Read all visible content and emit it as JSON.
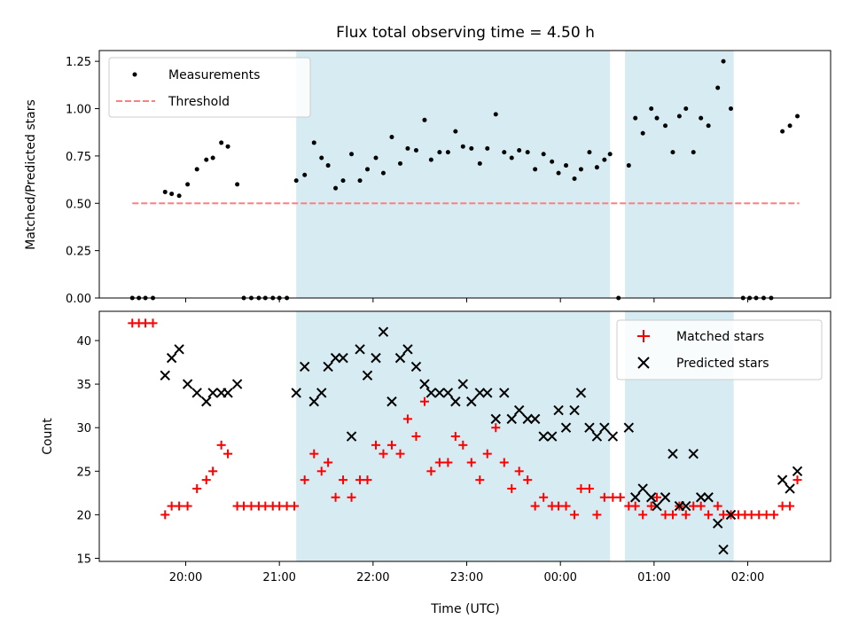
{
  "chart_data": [
    {
      "type": "scatter",
      "title": "Flux total observing time = 4.50 h",
      "xlabel": "",
      "ylabel": "Matched/Predicted stars",
      "ylim": [
        0,
        1.3
      ],
      "y_ticks": [
        "0.00",
        "0.25",
        "0.50",
        "0.75",
        "1.00",
        "1.25"
      ],
      "x_tick_hours": [
        20,
        21,
        22,
        23,
        24,
        25,
        26
      ],
      "legend": {
        "position": "top-left",
        "entries": [
          "Measurements",
          "Threshold"
        ]
      },
      "shaded_intervals_hours": [
        [
          21.18,
          24.53
        ],
        [
          24.69,
          25.85
        ]
      ],
      "threshold": {
        "name": "Threshold",
        "y": 0.5,
        "x_range_hours": [
          19.43,
          26.55
        ],
        "color": "#ff7f7f"
      },
      "series": [
        {
          "name": "Measurements",
          "color": "#000000",
          "points": [
            [
              19.43,
              0
            ],
            [
              19.5,
              0
            ],
            [
              19.57,
              0
            ],
            [
              19.65,
              0
            ],
            [
              19.78,
              0.56
            ],
            [
              19.85,
              0.55
            ],
            [
              19.93,
              0.54
            ],
            [
              20.02,
              0.6
            ],
            [
              20.12,
              0.68
            ],
            [
              20.22,
              0.73
            ],
            [
              20.29,
              0.74
            ],
            [
              20.38,
              0.82
            ],
            [
              20.45,
              0.8
            ],
            [
              20.55,
              0.6
            ],
            [
              20.62,
              0
            ],
            [
              20.7,
              0
            ],
            [
              20.78,
              0
            ],
            [
              20.85,
              0
            ],
            [
              20.93,
              0
            ],
            [
              21.0,
              0
            ],
            [
              21.08,
              0
            ],
            [
              21.18,
              0.62
            ],
            [
              21.27,
              0.65
            ],
            [
              21.37,
              0.82
            ],
            [
              21.45,
              0.74
            ],
            [
              21.52,
              0.7
            ],
            [
              21.6,
              0.58
            ],
            [
              21.68,
              0.62
            ],
            [
              21.77,
              0.76
            ],
            [
              21.86,
              0.62
            ],
            [
              21.94,
              0.68
            ],
            [
              22.03,
              0.74
            ],
            [
              22.11,
              0.66
            ],
            [
              22.2,
              0.85
            ],
            [
              22.29,
              0.71
            ],
            [
              22.37,
              0.79
            ],
            [
              22.46,
              0.78
            ],
            [
              22.55,
              0.94
            ],
            [
              22.62,
              0.73
            ],
            [
              22.71,
              0.77
            ],
            [
              22.8,
              0.77
            ],
            [
              22.88,
              0.88
            ],
            [
              22.96,
              0.8
            ],
            [
              23.05,
              0.79
            ],
            [
              23.14,
              0.71
            ],
            [
              23.22,
              0.79
            ],
            [
              23.31,
              0.97
            ],
            [
              23.4,
              0.77
            ],
            [
              23.48,
              0.74
            ],
            [
              23.56,
              0.78
            ],
            [
              23.65,
              0.77
            ],
            [
              23.73,
              0.68
            ],
            [
              23.82,
              0.76
            ],
            [
              23.91,
              0.72
            ],
            [
              23.98,
              0.66
            ],
            [
              24.06,
              0.7
            ],
            [
              24.15,
              0.63
            ],
            [
              24.22,
              0.68
            ],
            [
              24.31,
              0.77
            ],
            [
              24.39,
              0.69
            ],
            [
              24.47,
              0.73
            ],
            [
              24.53,
              0.76
            ],
            [
              24.62,
              0
            ],
            [
              24.73,
              0.7
            ],
            [
              24.8,
              0.95
            ],
            [
              24.88,
              0.87
            ],
            [
              24.97,
              1.0
            ],
            [
              25.03,
              0.95
            ],
            [
              25.12,
              0.91
            ],
            [
              25.2,
              0.77
            ],
            [
              25.27,
              0.96
            ],
            [
              25.34,
              1.0
            ],
            [
              25.42,
              0.77
            ],
            [
              25.5,
              0.95
            ],
            [
              25.58,
              0.91
            ],
            [
              25.68,
              1.11
            ],
            [
              25.74,
              1.25
            ],
            [
              25.82,
              1.0
            ],
            [
              25.95,
              0
            ],
            [
              26.02,
              0
            ],
            [
              26.09,
              0
            ],
            [
              26.17,
              0
            ],
            [
              26.25,
              0
            ],
            [
              26.37,
              0.88
            ],
            [
              26.45,
              0.91
            ],
            [
              26.53,
              0.96
            ]
          ]
        }
      ]
    },
    {
      "type": "scatter",
      "title": "",
      "xlabel": "Time (UTC)",
      "ylabel": "Count",
      "ylim": [
        14.6,
        43.5
      ],
      "y_ticks": [
        "15",
        "20",
        "25",
        "30",
        "35",
        "40"
      ],
      "x_tick_labels": [
        "20:00",
        "21:00",
        "22:00",
        "23:00",
        "00:00",
        "01:00",
        "02:00"
      ],
      "x_tick_hours": [
        20,
        21,
        22,
        23,
        24,
        25,
        26
      ],
      "legend": {
        "position": "top-right",
        "entries": [
          "Matched stars",
          "Predicted stars"
        ]
      },
      "shaded_intervals_hours": [
        [
          21.18,
          24.53
        ],
        [
          24.69,
          25.85
        ]
      ],
      "series": [
        {
          "name": "Matched stars",
          "marker": "plus",
          "color": "#ff0000",
          "points": [
            [
              19.43,
              42
            ],
            [
              19.5,
              42
            ],
            [
              19.57,
              42
            ],
            [
              19.65,
              42
            ],
            [
              19.78,
              20
            ],
            [
              19.85,
              21
            ],
            [
              19.93,
              21
            ],
            [
              20.02,
              21
            ],
            [
              20.12,
              23
            ],
            [
              20.22,
              24
            ],
            [
              20.29,
              25
            ],
            [
              20.38,
              28
            ],
            [
              20.45,
              27
            ],
            [
              20.55,
              21
            ],
            [
              20.62,
              21
            ],
            [
              20.7,
              21
            ],
            [
              20.78,
              21
            ],
            [
              20.85,
              21
            ],
            [
              20.93,
              21
            ],
            [
              21.0,
              21
            ],
            [
              21.08,
              21
            ],
            [
              21.16,
              21
            ],
            [
              21.27,
              24
            ],
            [
              21.37,
              27
            ],
            [
              21.45,
              25
            ],
            [
              21.52,
              26
            ],
            [
              21.6,
              22
            ],
            [
              21.68,
              24
            ],
            [
              21.77,
              22
            ],
            [
              21.86,
              24
            ],
            [
              21.94,
              24
            ],
            [
              22.03,
              28
            ],
            [
              22.11,
              27
            ],
            [
              22.2,
              28
            ],
            [
              22.29,
              27
            ],
            [
              22.37,
              31
            ],
            [
              22.46,
              29
            ],
            [
              22.55,
              33
            ],
            [
              22.62,
              25
            ],
            [
              22.71,
              26
            ],
            [
              22.8,
              26
            ],
            [
              22.88,
              29
            ],
            [
              22.96,
              28
            ],
            [
              23.05,
              26
            ],
            [
              23.14,
              24
            ],
            [
              23.22,
              27
            ],
            [
              23.31,
              30
            ],
            [
              23.4,
              26
            ],
            [
              23.48,
              23
            ],
            [
              23.56,
              25
            ],
            [
              23.65,
              24
            ],
            [
              23.73,
              21
            ],
            [
              23.82,
              22
            ],
            [
              23.91,
              21
            ],
            [
              23.98,
              21
            ],
            [
              24.06,
              21
            ],
            [
              24.15,
              20
            ],
            [
              24.22,
              23
            ],
            [
              24.31,
              23
            ],
            [
              24.39,
              20
            ],
            [
              24.47,
              22
            ],
            [
              24.56,
              22
            ],
            [
              24.64,
              22
            ],
            [
              24.73,
              21
            ],
            [
              24.8,
              21
            ],
            [
              24.88,
              20
            ],
            [
              24.97,
              21
            ],
            [
              25.03,
              22
            ],
            [
              25.12,
              20
            ],
            [
              25.2,
              20
            ],
            [
              25.27,
              21
            ],
            [
              25.34,
              20
            ],
            [
              25.42,
              21
            ],
            [
              25.5,
              21
            ],
            [
              25.58,
              20
            ],
            [
              25.68,
              21
            ],
            [
              25.74,
              20
            ],
            [
              25.82,
              20
            ],
            [
              25.9,
              20
            ],
            [
              25.97,
              20
            ],
            [
              26.04,
              20
            ],
            [
              26.12,
              20
            ],
            [
              26.2,
              20
            ],
            [
              26.28,
              20
            ],
            [
              26.37,
              21
            ],
            [
              26.45,
              21
            ],
            [
              26.53,
              24
            ]
          ]
        },
        {
          "name": "Predicted stars",
          "marker": "x",
          "color": "#000000",
          "points": [
            [
              19.78,
              36
            ],
            [
              19.85,
              38
            ],
            [
              19.93,
              39
            ],
            [
              20.02,
              35
            ],
            [
              20.12,
              34
            ],
            [
              20.22,
              33
            ],
            [
              20.29,
              34
            ],
            [
              20.38,
              34
            ],
            [
              20.45,
              34
            ],
            [
              20.55,
              35
            ],
            [
              21.18,
              34
            ],
            [
              21.27,
              37
            ],
            [
              21.37,
              33
            ],
            [
              21.45,
              34
            ],
            [
              21.52,
              37
            ],
            [
              21.6,
              38
            ],
            [
              21.68,
              38
            ],
            [
              21.77,
              29
            ],
            [
              21.86,
              39
            ],
            [
              21.94,
              36
            ],
            [
              22.03,
              38
            ],
            [
              22.11,
              41
            ],
            [
              22.2,
              33
            ],
            [
              22.29,
              38
            ],
            [
              22.37,
              39
            ],
            [
              22.46,
              37
            ],
            [
              22.55,
              35
            ],
            [
              22.62,
              34
            ],
            [
              22.71,
              34
            ],
            [
              22.8,
              34
            ],
            [
              22.88,
              33
            ],
            [
              22.96,
              35
            ],
            [
              23.05,
              33
            ],
            [
              23.14,
              34
            ],
            [
              23.22,
              34
            ],
            [
              23.31,
              31
            ],
            [
              23.4,
              34
            ],
            [
              23.48,
              31
            ],
            [
              23.56,
              32
            ],
            [
              23.65,
              31
            ],
            [
              23.73,
              31
            ],
            [
              23.82,
              29
            ],
            [
              23.91,
              29
            ],
            [
              23.98,
              32
            ],
            [
              24.06,
              30
            ],
            [
              24.15,
              32
            ],
            [
              24.22,
              34
            ],
            [
              24.31,
              30
            ],
            [
              24.39,
              29
            ],
            [
              24.47,
              30
            ],
            [
              24.56,
              29
            ],
            [
              24.73,
              30
            ],
            [
              24.8,
              22
            ],
            [
              24.88,
              23
            ],
            [
              24.97,
              22
            ],
            [
              25.03,
              21
            ],
            [
              25.12,
              22
            ],
            [
              25.2,
              27
            ],
            [
              25.27,
              21
            ],
            [
              25.34,
              21
            ],
            [
              25.42,
              27
            ],
            [
              25.5,
              22
            ],
            [
              25.58,
              22
            ],
            [
              25.68,
              19
            ],
            [
              25.74,
              16
            ],
            [
              25.82,
              20
            ],
            [
              26.37,
              24
            ],
            [
              26.45,
              23
            ],
            [
              26.53,
              25
            ]
          ]
        }
      ]
    }
  ]
}
